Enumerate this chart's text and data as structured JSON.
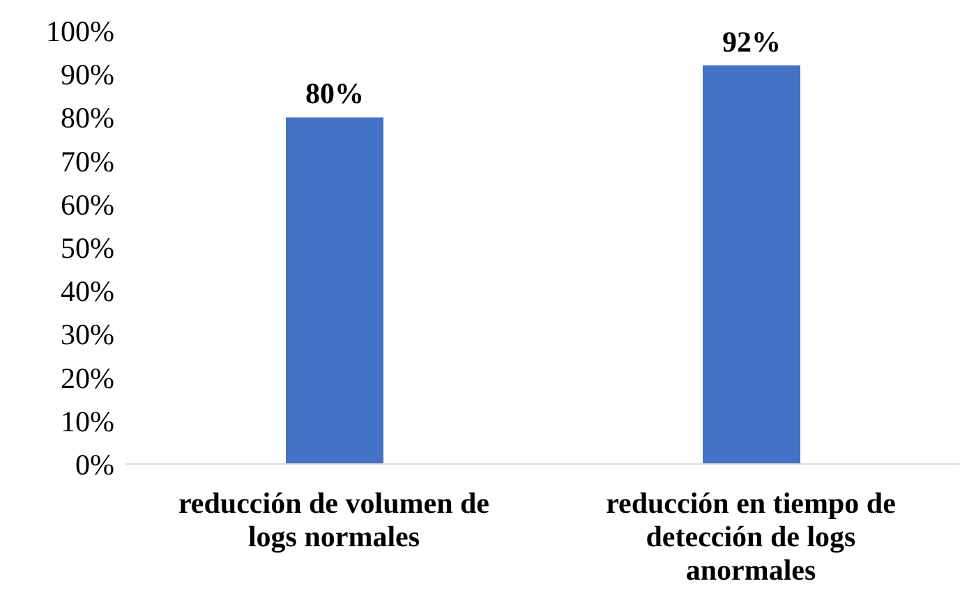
{
  "chart_data": {
    "type": "bar",
    "categories": [
      "reducción de volumen de logs normales",
      "reducción en tiempo de detección de logs anormales"
    ],
    "values": [
      80,
      92
    ],
    "value_labels": [
      "80%",
      "92%"
    ],
    "color": "#4472c4",
    "ylim": [
      0,
      100
    ],
    "yticks": [
      {
        "value": 0,
        "label": "0%"
      },
      {
        "value": 10,
        "label": "10%"
      },
      {
        "value": 20,
        "label": "20%"
      },
      {
        "value": 30,
        "label": "30%"
      },
      {
        "value": 40,
        "label": "40%"
      },
      {
        "value": 50,
        "label": "50%"
      },
      {
        "value": 60,
        "label": "60%"
      },
      {
        "value": 70,
        "label": "70%"
      },
      {
        "value": 80,
        "label": "80%"
      },
      {
        "value": 90,
        "label": "90%"
      },
      {
        "value": 100,
        "label": "100%"
      }
    ],
    "grid": false,
    "legend": false
  }
}
